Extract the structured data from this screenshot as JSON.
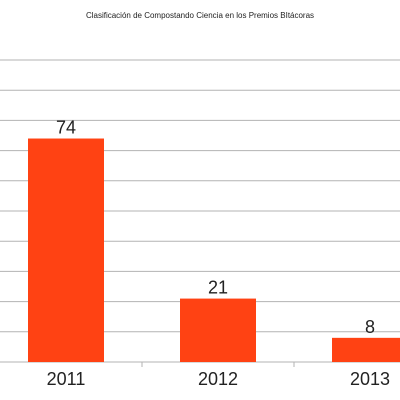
{
  "chart_data": {
    "type": "bar",
    "title": "Clasificación de Compostando Ciencia en los Premios BItácoras",
    "categories": [
      "2011",
      "2012",
      "2013"
    ],
    "values": [
      74,
      21,
      8
    ],
    "ylim": [
      0,
      100
    ],
    "y_gridline_step": 10,
    "grid": true,
    "legend": "none",
    "xlabel": "",
    "ylabel": "",
    "bar_color": "#ff4213",
    "grid_color": "#b3b3b3"
  }
}
